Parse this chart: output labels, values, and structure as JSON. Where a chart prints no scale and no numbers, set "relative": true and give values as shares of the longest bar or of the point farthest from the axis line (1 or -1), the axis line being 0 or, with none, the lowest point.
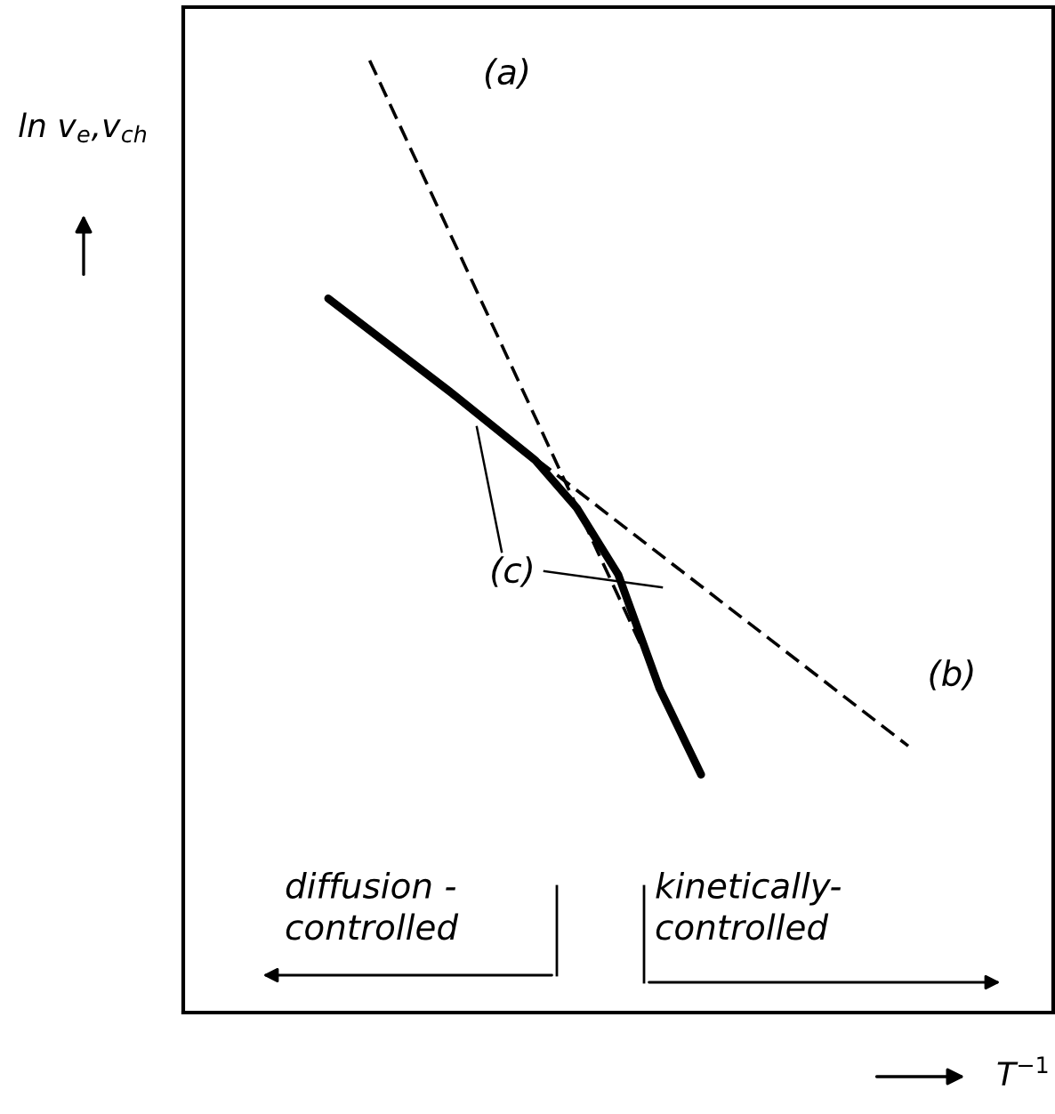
{
  "chart_data": {
    "type": "line",
    "relative": true,
    "xlabel": "T$^{−1}$",
    "ylabel": "ln v$_{e}$,v$_{ch}$",
    "categories": [
      null,
      null,
      null,
      null,
      null,
      null,
      null,
      null,
      null,
      null,
      null,
      null,
      null,
      null,
      null,
      null,
      null,
      null,
      null,
      null,
      null
    ],
    "series": [
      {
        "name": "(a)",
        "color": "#000000",
        "line_style": "dashed",
        "values": [
          null,
          null,
          null,
          null,
          1.0,
          null,
          null,
          null,
          null,
          null,
          null,
          null,
          0.25,
          null,
          null,
          null,
          null,
          null,
          null,
          null,
          null
        ]
      },
      {
        "name": "(b)",
        "color": "#000000",
        "line_style": "dashed",
        "values": [
          null,
          null,
          null,
          0.75,
          null,
          null,
          null,
          null,
          null,
          null,
          null,
          null,
          null,
          null,
          null,
          null,
          null,
          0.28,
          null,
          null,
          null
        ]
      },
      {
        "name": "(c)",
        "color": "#000000",
        "line_style": "solid",
        "values": [
          null,
          null,
          null,
          0.75,
          null,
          null,
          0.65,
          null,
          0.58,
          0.53,
          0.46,
          0.34,
          0.25,
          null,
          null,
          null,
          null,
          null,
          null,
          null,
          null
        ]
      }
    ],
    "annotations": [
      "diffusion -\ncontrolled",
      "kinetically-\ncontrolled"
    ],
    "grid": false
  }
}
